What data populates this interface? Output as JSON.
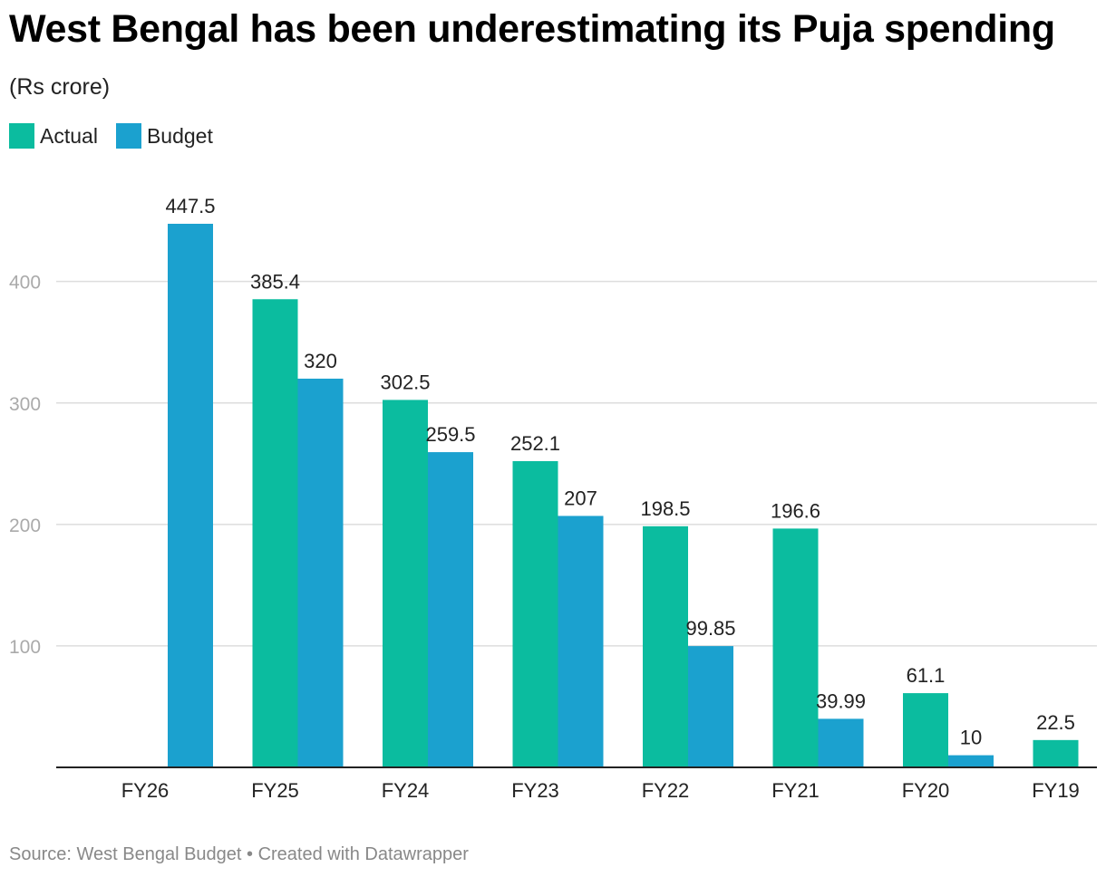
{
  "title": "West Bengal has been underestimating its Puja spending",
  "subtitle": "(Rs crore)",
  "colors": {
    "actual": "#0bbc9f",
    "budget": "#1ba1cf",
    "grid": "#dddddd",
    "axis": "#222222",
    "tick_label": "#aaaaaa"
  },
  "footer": {
    "text": "Source: West Bengal Budget • Created with Datawrapper"
  },
  "chart_data": {
    "type": "bar",
    "categories": [
      "FY26",
      "FY25",
      "FY24",
      "FY23",
      "FY22",
      "FY21",
      "FY20",
      "FY19"
    ],
    "series": [
      {
        "name": "Actual",
        "values": [
          null,
          385.4,
          302.5,
          252.1,
          198.5,
          196.6,
          61.1,
          22.5
        ],
        "labels": [
          null,
          "385.4",
          "302.5",
          "252.1",
          "198.5",
          "196.6",
          "61.1",
          "22.5"
        ]
      },
      {
        "name": "Budget",
        "values": [
          447.5,
          320,
          259.5,
          207,
          99.85,
          39.99,
          10,
          null
        ],
        "labels": [
          "447.5",
          "320",
          "259.5",
          "207",
          "99.85",
          "39.99",
          "10",
          null
        ]
      }
    ],
    "yticks": [
      100,
      200,
      300,
      400
    ],
    "ylim": [
      0,
      447.5
    ],
    "grid": true,
    "legend_placement": "top-left"
  }
}
